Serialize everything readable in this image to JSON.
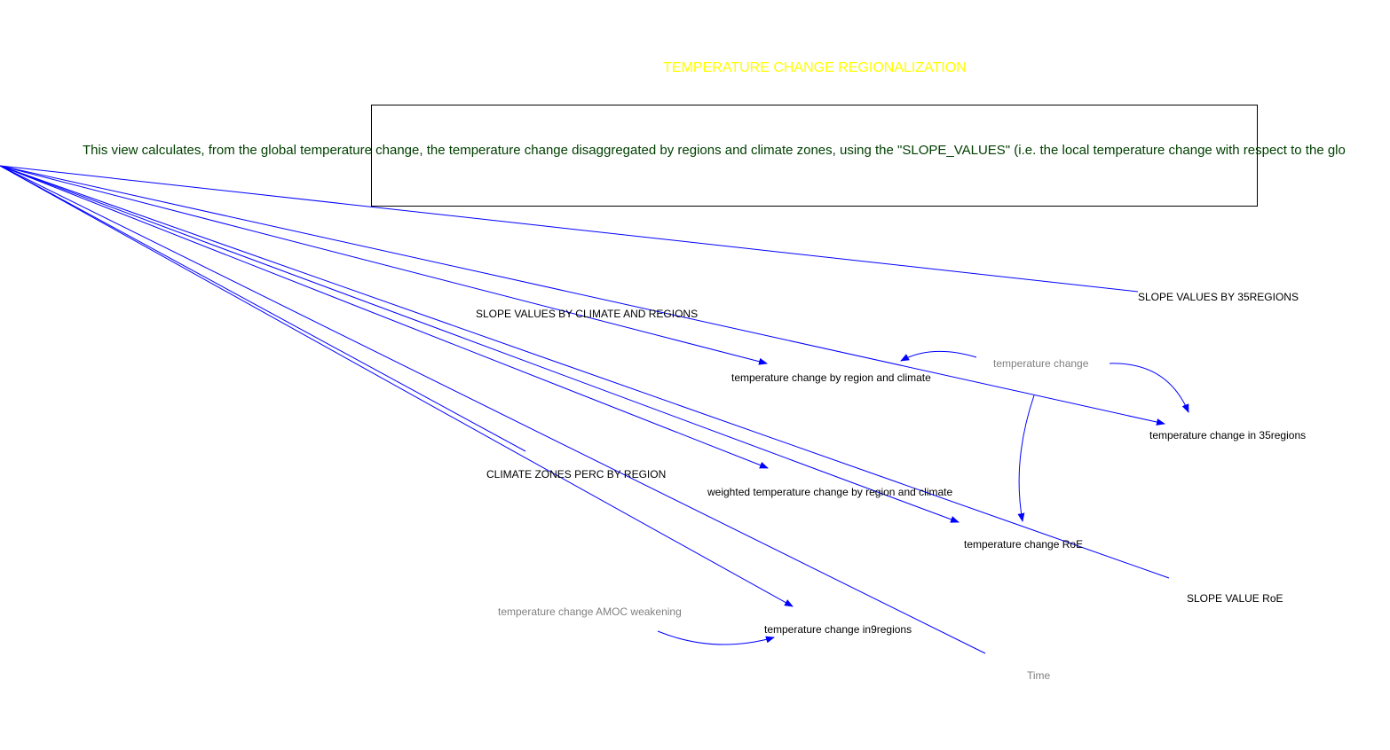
{
  "view": {
    "title": "TEMPERATURE CHANGE REGIONALIZATION",
    "description": "This view calculates, from the global temperature change, the temperature change disaggregated by regions and climate zones, using the \"SLOPE_VALUES\" (i.e. the local temperature change with respect to the glo"
  },
  "colors": {
    "title": "#ffff00",
    "description": "#004000",
    "arrow": "#0000ff",
    "variable": "#000000",
    "shadow_variable": "#808080"
  },
  "variables": {
    "slope_values_35regions": "SLOPE VALUES BY 35REGIONS",
    "slope_values_climate_regions": "SLOPE VALUES BY CLIMATE AND REGIONS",
    "temp_change_by_region_climate": "temperature change by region and climate",
    "temperature_change": "temperature change",
    "temp_change_35regions": "temperature change in 35regions",
    "climate_zones_perc": "CLIMATE ZONES PERC BY REGION",
    "weighted_temp_change": "weighted temperature change by region and climate",
    "temp_change_roe": "temperature change RoE",
    "slope_value_roe": "SLOPE VALUE RoE",
    "temp_change_amoc": "temperature change AMOC weakening",
    "temp_change_9regions": "temperature change in9regions",
    "time": "Time"
  }
}
